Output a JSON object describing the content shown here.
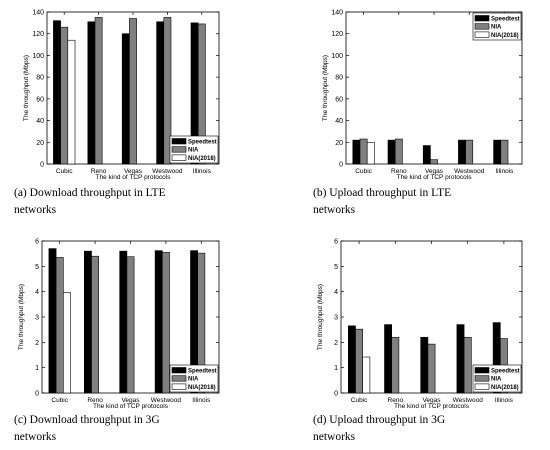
{
  "charts": [
    {
      "caption": "(a)  Download  throughput  in  LTE\nnetworks",
      "chart_data": {
        "type": "bar",
        "categories": [
          "Cubic",
          "Reno",
          "Vegas",
          "Westwood",
          "Illinois"
        ],
        "series": [
          {
            "name": "Speedtest",
            "values": [
              132,
              131,
              120,
              131,
              130
            ]
          },
          {
            "name": "NIA",
            "values": [
              126,
              135,
              134,
              135,
              129
            ]
          },
          {
            "name": "NIA(2018)",
            "values": [
              114,
              null,
              null,
              null,
              null
            ]
          }
        ],
        "xlabel": "The kind of TCP protocols",
        "ylabel": "The throughput (Mbps)",
        "ylim": [
          0,
          140
        ],
        "yticks": [
          "0",
          "20",
          "40",
          "60",
          "80",
          "100",
          "120",
          "140"
        ],
        "legend_position": "bottom-right"
      }
    },
    {
      "caption": "(b)  Upload  throughput  in  LTE\nnetworks",
      "chart_data": {
        "type": "bar",
        "categories": [
          "Cubic",
          "Reno",
          "Vegas",
          "Westwood",
          "Illinois"
        ],
        "series": [
          {
            "name": "Speedtest",
            "values": [
              22,
              22,
              17,
              22,
              22
            ]
          },
          {
            "name": "NIA",
            "values": [
              23,
              23,
              4,
              22,
              22
            ]
          },
          {
            "name": "NIA(2018)",
            "values": [
              20,
              null,
              null,
              null,
              null
            ]
          }
        ],
        "xlabel": "The kind of TCP protocols",
        "ylabel": "The throughput (Mbps)",
        "ylim": [
          0,
          140
        ],
        "yticks": [
          "0",
          "20",
          "40",
          "60",
          "80",
          "100",
          "120",
          "140"
        ],
        "legend_position": "top-right"
      }
    },
    {
      "caption": "(c)  Download  throughput  in  3G\nnetworks",
      "chart_data": {
        "type": "bar",
        "categories": [
          "Cubic",
          "Reno",
          "Vegas",
          "Westwood",
          "Illinois"
        ],
        "series": [
          {
            "name": "Speedtest",
            "values": [
              5.7,
              5.6,
              5.6,
              5.62,
              5.62
            ]
          },
          {
            "name": "NIA",
            "values": [
              5.35,
              5.4,
              5.38,
              5.55,
              5.52
            ]
          },
          {
            "name": "NIA(2018)",
            "values": [
              3.97,
              null,
              null,
              null,
              null
            ]
          }
        ],
        "xlabel": "The kind of TCP protocols",
        "ylabel": "The throughput (Mbps)",
        "ylim": [
          0,
          6
        ],
        "yticks": [
          "0",
          "1",
          "2",
          "3",
          "4",
          "5",
          "6"
        ],
        "legend_position": "bottom-right"
      }
    },
    {
      "caption": "(d)  Upload  throughput  in  3G\nnetworks",
      "chart_data": {
        "type": "bar",
        "categories": [
          "Cubic",
          "Reno",
          "Vegas",
          "Westwood",
          "Illinois"
        ],
        "series": [
          {
            "name": "Speedtest",
            "values": [
              2.65,
              2.7,
              2.2,
              2.7,
              2.78
            ]
          },
          {
            "name": "NIA",
            "values": [
              2.52,
              2.2,
              1.93,
              2.2,
              2.15
            ]
          },
          {
            "name": "NIA(2018)",
            "values": [
              1.42,
              null,
              null,
              null,
              null
            ]
          }
        ],
        "xlabel": "The kind of TCP protocols",
        "ylabel": "The throughput (Mbps)",
        "ylim": [
          0,
          6
        ],
        "yticks": [
          "0",
          "1",
          "2",
          "3",
          "4",
          "5",
          "6"
        ],
        "legend_position": "bottom-right"
      }
    }
  ],
  "colors": {
    "Speedtest": "#000000",
    "NIA": "#808080",
    "NIA(2018)": "#ffffff"
  }
}
